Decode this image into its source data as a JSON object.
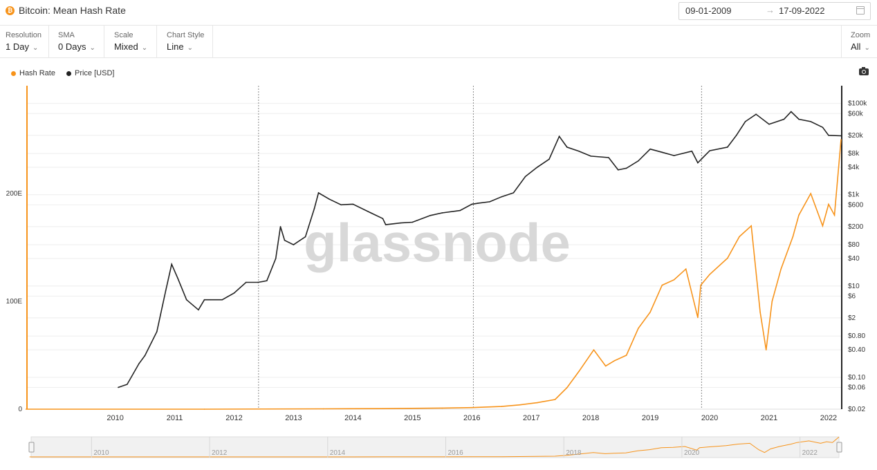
{
  "header": {
    "coin_glyph": "₿",
    "title": "Bitcoin: Mean Hash Rate",
    "date_from": "09-01-2009",
    "date_arrow": "→",
    "date_to": "17-09-2022"
  },
  "controls": {
    "resolution": {
      "label": "Resolution",
      "value": "1 Day"
    },
    "sma": {
      "label": "SMA",
      "value": "0 Days"
    },
    "scale": {
      "label": "Scale",
      "value": "Mixed"
    },
    "chart_style": {
      "label": "Chart Style",
      "value": "Line"
    },
    "zoom": {
      "label": "Zoom",
      "value": "All"
    },
    "chevron": "⌄"
  },
  "legend": [
    {
      "name": "Hash Rate",
      "color": "#f7931a"
    },
    {
      "name": "Price [USD]",
      "color": "#222222"
    }
  ],
  "watermark": "glassnode",
  "colors": {
    "hash_rate": "#f7931a",
    "price": "#222222",
    "grid": "#eeeeee"
  },
  "chart_data": {
    "type": "line",
    "title": "Bitcoin: Mean Hash Rate",
    "x_ticks": [
      "2010",
      "2011",
      "2012",
      "2013",
      "2014",
      "2015",
      "2016",
      "2017",
      "2018",
      "2019",
      "2020",
      "2021",
      "2022"
    ],
    "xlim": [
      "2009-01-09",
      "2022-09-17"
    ],
    "y_left": {
      "label": "Hash Rate",
      "scale": "linear",
      "ticks": [
        "0",
        "100E",
        "200E"
      ],
      "range": [
        0,
        300
      ]
    },
    "y_right": {
      "label": "Price [USD]",
      "scale": "log",
      "ticks": [
        "$100k",
        "$60k",
        "$20k",
        "$8k",
        "$4k",
        "$1k",
        "$600",
        "$200",
        "$80",
        "$40",
        "$10",
        "$6",
        "$2",
        "$0.80",
        "$0.40",
        "$0.10",
        "$0.06",
        "$0.02"
      ],
      "range": [
        0.02,
        150000
      ]
    },
    "halving_lines": [
      "2012-11-28",
      "2016-07-09",
      "2020-05-11"
    ],
    "legend_position": "top-left",
    "series": [
      {
        "name": "Hash Rate",
        "axis": "left",
        "color": "#f7931a",
        "x": [
          2009.0,
          2012.0,
          2014.0,
          2015.0,
          2016.0,
          2016.5,
          2017.0,
          2017.3,
          2017.6,
          2017.9,
          2018.1,
          2018.3,
          2018.55,
          2018.75,
          2018.9,
          2019.1,
          2019.3,
          2019.5,
          2019.7,
          2019.9,
          2020.1,
          2020.3,
          2020.35,
          2020.5,
          2020.8,
          2021.0,
          2021.2,
          2021.35,
          2021.45,
          2021.55,
          2021.7,
          2021.9,
          2022.0,
          2022.2,
          2022.4,
          2022.5,
          2022.6,
          2022.71
        ],
        "y": [
          0,
          0,
          0.3,
          0.5,
          1.0,
          1.5,
          2.5,
          4,
          6,
          9,
          20,
          35,
          55,
          40,
          45,
          50,
          75,
          90,
          115,
          120,
          130,
          85,
          115,
          125,
          140,
          160,
          170,
          90,
          55,
          100,
          130,
          160,
          180,
          200,
          170,
          190,
          180,
          250
        ]
      },
      {
        "name": "Price [USD]",
        "axis": "right",
        "color": "#222222",
        "x": [
          2010.55,
          2010.7,
          2010.9,
          2011.0,
          2011.2,
          2011.35,
          2011.45,
          2011.55,
          2011.7,
          2011.9,
          2012.0,
          2012.1,
          2012.3,
          2012.5,
          2012.7,
          2012.9,
          2013.05,
          2013.2,
          2013.28,
          2013.35,
          2013.5,
          2013.7,
          2013.85,
          2013.92,
          2014.1,
          2014.3,
          2014.5,
          2014.8,
          2015.0,
          2015.05,
          2015.3,
          2015.5,
          2015.8,
          2016.0,
          2016.3,
          2016.5,
          2016.6,
          2016.8,
          2017.0,
          2017.2,
          2017.4,
          2017.6,
          2017.8,
          2017.97,
          2018.1,
          2018.3,
          2018.5,
          2018.8,
          2018.96,
          2019.1,
          2019.3,
          2019.5,
          2019.7,
          2019.9,
          2020.2,
          2020.3,
          2020.5,
          2020.8,
          2020.95,
          2021.1,
          2021.28,
          2021.5,
          2021.75,
          2021.87,
          2022.0,
          2022.2,
          2022.4,
          2022.5,
          2022.71
        ],
        "y": [
          0.06,
          0.07,
          0.2,
          0.3,
          1.0,
          8.0,
          30,
          15,
          5,
          3,
          5,
          5,
          5,
          7,
          12,
          12,
          13,
          40,
          200,
          100,
          80,
          120,
          500,
          1100,
          800,
          600,
          620,
          400,
          300,
          220,
          240,
          250,
          350,
          400,
          450,
          620,
          650,
          700,
          900,
          1100,
          2500,
          4000,
          6000,
          19000,
          11000,
          9000,
          7000,
          6500,
          3500,
          3800,
          5500,
          10000,
          8500,
          7200,
          9000,
          5000,
          9200,
          11000,
          20000,
          40000,
          58000,
          35000,
          45000,
          66000,
          45000,
          40000,
          30000,
          20000,
          19500
        ]
      }
    ]
  },
  "navigator": {
    "ticks": [
      "2010",
      "2012",
      "2014",
      "2016",
      "2018",
      "2020",
      "2022"
    ]
  }
}
